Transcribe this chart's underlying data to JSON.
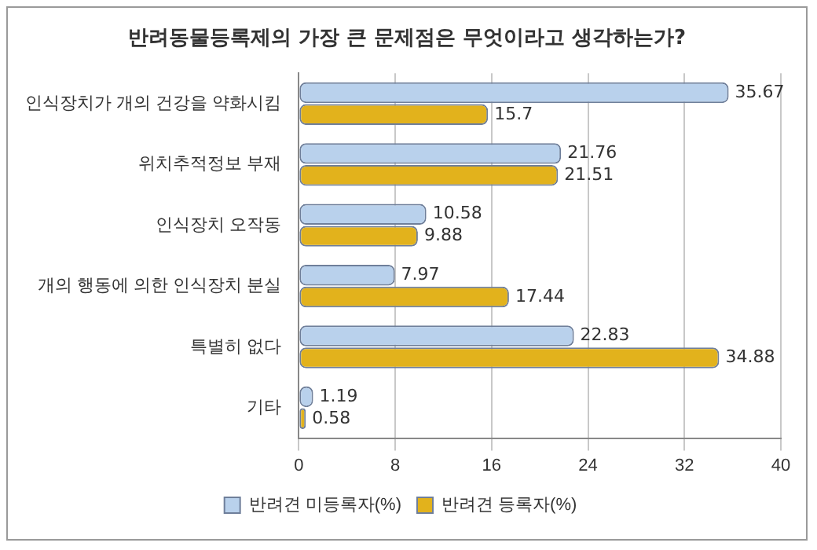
{
  "chart_data": {
    "type": "bar",
    "orientation": "horizontal",
    "title": "반려동물등록제의 가장 큰 문제점은 무엇이라고 생각하는가?",
    "categories": [
      "인식장치가 개의 건강을 약화시킴",
      "위치추적정보 부재",
      "인식장치 오작동",
      "개의 행동에 의한 인식장치 분실",
      "특별히 없다",
      "기타"
    ],
    "series": [
      {
        "name": "반려견 미등록자(%)",
        "color": "#b9d1ec",
        "values": [
          35.67,
          21.76,
          10.58,
          7.97,
          22.83,
          1.19
        ]
      },
      {
        "name": "반려견 등록자(%)",
        "color": "#e2b21c",
        "values": [
          15.7,
          21.51,
          9.88,
          17.44,
          34.88,
          0.58
        ]
      }
    ],
    "xlim": [
      0,
      40
    ],
    "xticks": [
      0,
      8,
      16,
      24,
      32,
      40
    ],
    "grid": "x",
    "legend": "bottom",
    "data_labels": true
  }
}
